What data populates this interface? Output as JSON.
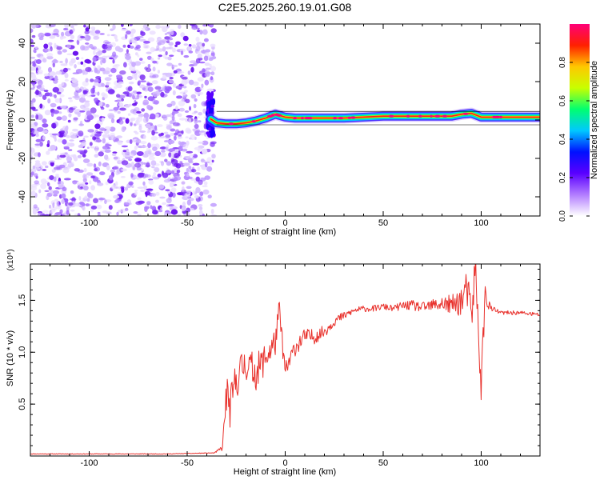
{
  "title": "C2E5.2025.260.19.01.G08",
  "chart_data": [
    {
      "type": "heatmap",
      "xlabel": "Height of straight line (km)",
      "ylabel": "Frequency (Hz)",
      "xlim": [
        -130,
        130
      ],
      "ylim": [
        -50,
        50
      ],
      "xticks": [
        -100,
        -50,
        0,
        50,
        100
      ],
      "yticks": [
        -40,
        -20,
        0,
        20,
        40
      ],
      "noise_region_x": [
        -130,
        -38
      ],
      "signal_track": {
        "x": [
          -38,
          -35,
          -30,
          -25,
          -20,
          -15,
          -10,
          -5,
          0,
          5,
          10,
          20,
          30,
          50,
          70,
          85,
          90,
          95,
          100,
          110,
          130
        ],
        "freq": [
          0.5,
          -1.5,
          -2,
          -2,
          -1.5,
          -0.5,
          1,
          3,
          1.5,
          1,
          1,
          1,
          1,
          2,
          2,
          2,
          3,
          3.5,
          1.5,
          1.5,
          1.5
        ]
      },
      "colorbar": {
        "label": "Normalized spectral amplitude",
        "range": [
          0,
          1
        ],
        "ticks": [
          "0.0",
          "0.2",
          "0.4",
          "0.6",
          "0.8"
        ],
        "colors": [
          "#ffffff",
          "#b27cff",
          "#5a00ff",
          "#0010ff",
          "#00c8ff",
          "#00ff70",
          "#c8ff00",
          "#ffc800",
          "#ff2000",
          "#ff0078"
        ]
      }
    },
    {
      "type": "line",
      "xlabel": "Height of straight line (km)",
      "ylabel": "SNR (10 * v/v)",
      "scale_label": "(x10⁴)",
      "xlim": [
        -130,
        130
      ],
      "ylim": [
        0,
        1.85
      ],
      "xticks": [
        -100,
        -50,
        0,
        50,
        100
      ],
      "yticks": [
        "0.5",
        "1.0",
        "1.5"
      ],
      "yticks_values": [
        0.5,
        1.0,
        1.5
      ],
      "color": "#e8302b",
      "x": [
        -130,
        -100,
        -60,
        -36,
        -32,
        -30,
        -28,
        -25,
        -20,
        -15,
        -10,
        -5,
        -3,
        0,
        5,
        10,
        15,
        20,
        25,
        30,
        35,
        40,
        45,
        50,
        55,
        60,
        65,
        70,
        75,
        80,
        85,
        90,
        93,
        95,
        97,
        98,
        100,
        102,
        105,
        110,
        115,
        120,
        125,
        130
      ],
      "values": [
        0.02,
        0.02,
        0.02,
        0.03,
        0.08,
        0.6,
        0.45,
        0.75,
        0.9,
        0.8,
        0.95,
        1.1,
        1.4,
        0.8,
        1.05,
        1.15,
        1.15,
        1.2,
        1.3,
        1.35,
        1.4,
        1.42,
        1.42,
        1.44,
        1.42,
        1.45,
        1.45,
        1.43,
        1.45,
        1.47,
        1.45,
        1.5,
        1.6,
        1.3,
        1.85,
        1.4,
        0.7,
        1.55,
        1.42,
        1.38,
        1.38,
        1.38,
        1.37,
        1.36
      ],
      "noise_amplitude": [
        0.003,
        0.003,
        0.003,
        0.003,
        0.03,
        0.2,
        0.2,
        0.2,
        0.18,
        0.17,
        0.16,
        0.14,
        0.12,
        0.1,
        0.09,
        0.08,
        0.07,
        0.06,
        0.05,
        0.04,
        0.03,
        0.03,
        0.03,
        0.03,
        0.03,
        0.04,
        0.05,
        0.05,
        0.06,
        0.08,
        0.1,
        0.15,
        0.2,
        0.2,
        0.2,
        0.2,
        0.2,
        0.12,
        0.03,
        0.02,
        0.02,
        0.02,
        0.02,
        0.02
      ]
    }
  ]
}
